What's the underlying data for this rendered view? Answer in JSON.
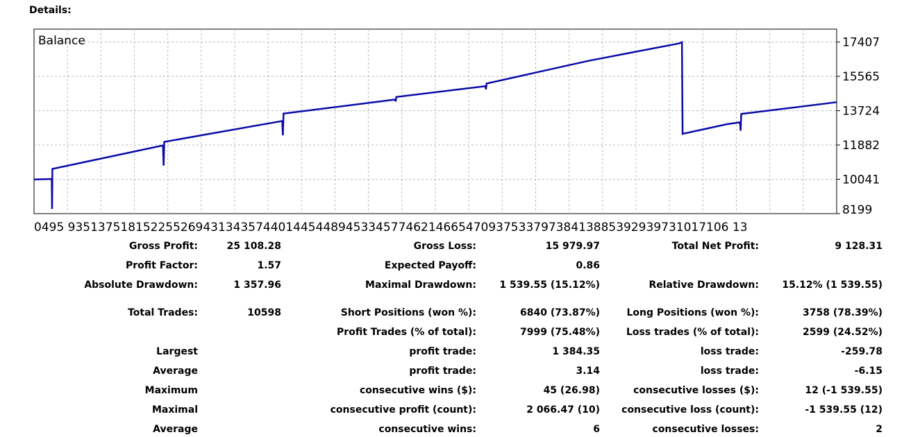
{
  "heading": "Details:",
  "chart_data": {
    "type": "line",
    "title": "Balance",
    "series": [
      {
        "values": [
          [
            0,
            10030
          ],
          [
            4,
            10050
          ],
          [
            5.5,
            10060
          ],
          [
            5.6,
            8450
          ],
          [
            5.7,
            10600
          ],
          [
            40,
            11860
          ],
          [
            40.2,
            10780
          ],
          [
            40.4,
            12050
          ],
          [
            77,
            13170
          ],
          [
            77.2,
            12400
          ],
          [
            77.4,
            13570
          ],
          [
            112,
            14320
          ],
          [
            112.2,
            14220
          ],
          [
            112.4,
            14460
          ],
          [
            140,
            15040
          ],
          [
            140.2,
            14870
          ],
          [
            140.4,
            15180
          ],
          [
            172,
            16400
          ],
          [
            200,
            17330
          ],
          [
            201,
            17400
          ],
          [
            201.2,
            12480
          ],
          [
            215,
            13000
          ],
          [
            219,
            13100
          ],
          [
            219.2,
            12650
          ],
          [
            219.4,
            13550
          ],
          [
            249,
            14180
          ]
        ]
      }
    ],
    "x_tick_labels": "0495   9351375181522552694313435744014454489453345774621466547093753379738413885392939731017106 13",
    "y_ticks": [
      17407,
      15565,
      13724,
      11882,
      10041,
      8199
    ],
    "xlim": [
      0,
      249
    ],
    "ylim": [
      8199,
      18100
    ],
    "grid": true,
    "line_color": "#0a0aa8"
  },
  "stats": {
    "gross_profit": {
      "label": "Gross Profit:",
      "value": "25 108.28"
    },
    "gross_loss": {
      "label": "Gross Loss:",
      "value": "15 979.97"
    },
    "total_net_profit": {
      "label": "Total Net Profit:",
      "value": "9 128.31"
    },
    "profit_factor": {
      "label": "Profit Factor:",
      "value": "1.57"
    },
    "expected_payoff": {
      "label": "Expected Payoff:",
      "value": "0.86"
    },
    "absolute_drawdown": {
      "label": "Absolute Drawdown:",
      "value": "1 357.96"
    },
    "maximal_drawdown": {
      "label": "Maximal Drawdown:",
      "value": "1 539.55 (15.12%)"
    },
    "relative_drawdown": {
      "label": "Relative Drawdown:",
      "value": "15.12% (1 539.55)"
    },
    "total_trades": {
      "label": "Total Trades:",
      "value": "10598"
    },
    "short_positions": {
      "label": "Short Positions (won %):",
      "value": "6840 (73.87%)"
    },
    "long_positions": {
      "label": "Long Positions (won %):",
      "value": "3758 (78.39%)"
    },
    "profit_trades": {
      "label": "Profit Trades (% of total):",
      "value": "7999 (75.48%)"
    },
    "loss_trades": {
      "label": "Loss trades (% of total):",
      "value": "2599 (24.52%)"
    },
    "largest": {
      "label": "Largest",
      "profit_label": "profit trade:",
      "profit_value": "1 384.35",
      "loss_label": "loss trade:",
      "loss_value": "-259.78"
    },
    "average_trade": {
      "label": "Average",
      "profit_label": "profit trade:",
      "profit_value": "3.14",
      "loss_label": "loss trade:",
      "loss_value": "-6.15"
    },
    "maximum": {
      "label": "Maximum",
      "profit_label": "consecutive wins ($):",
      "profit_value": "45 (26.98)",
      "loss_label": "consecutive losses ($):",
      "loss_value": "12 (-1 539.55)"
    },
    "maximal": {
      "label": "Maximal",
      "profit_label": "consecutive profit (count):",
      "profit_value": "2 066.47 (10)",
      "loss_label": "consecutive loss (count):",
      "loss_value": "-1 539.55 (12)"
    },
    "average_consec": {
      "label": "Average",
      "profit_label": "consecutive wins:",
      "profit_value": "6",
      "loss_label": "consecutive losses:",
      "loss_value": "2"
    }
  }
}
